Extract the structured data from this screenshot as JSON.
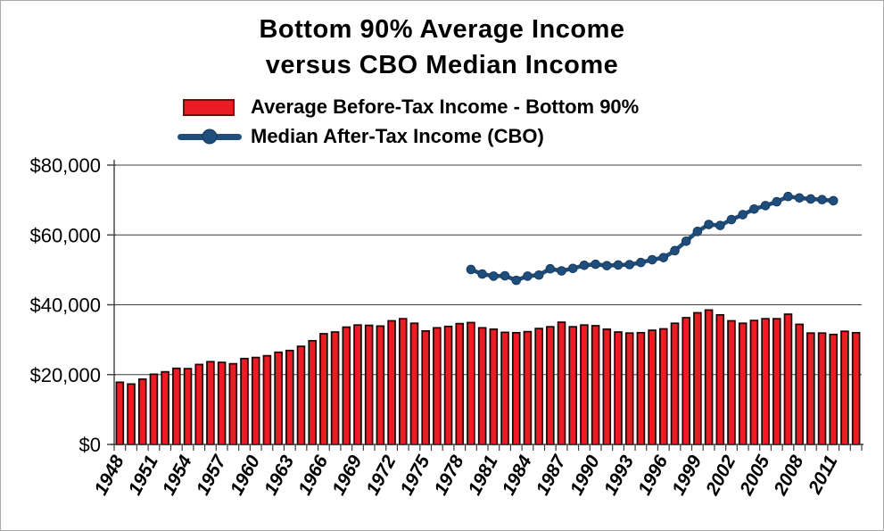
{
  "title": {
    "line1": "Bottom 90% Average Income",
    "line2": "versus CBO Median Income"
  },
  "legend": {
    "items": [
      {
        "label": "Average Before-Tax Income - Bottom 90%",
        "swatch": "bar",
        "color": "#ec1c24",
        "border_color": "#7a0a0a"
      },
      {
        "label": "Median After-Tax Income (CBO)",
        "swatch": "line-with-dot",
        "color": "#1f4e7c"
      }
    ]
  },
  "colors": {
    "bar_fill": "#ec1c24",
    "bar_border": "#1c0505",
    "line": "#1f4e7c",
    "marker_border": "#16395e",
    "axis": "#3f3f3f",
    "gridline": "#3f3f3f",
    "text": "#000000"
  },
  "chart_data": {
    "type": "bar+line combo",
    "title": "Bottom 90% Average Income versus CBO Median Income",
    "xlabel": "",
    "ylabel": "",
    "ylim": [
      0,
      80000
    ],
    "grid": true,
    "legend_position": "top-left",
    "y_ticks": [
      {
        "value": 0,
        "label": "$0"
      },
      {
        "value": 20000,
        "label": "$20,000"
      },
      {
        "value": 40000,
        "label": "$40,000"
      },
      {
        "value": 60000,
        "label": "$60,000"
      },
      {
        "value": 80000,
        "label": "$80,000"
      }
    ],
    "x_years": [
      1948,
      1949,
      1950,
      1951,
      1952,
      1953,
      1954,
      1955,
      1956,
      1957,
      1958,
      1959,
      1960,
      1961,
      1962,
      1963,
      1964,
      1965,
      1966,
      1967,
      1968,
      1969,
      1970,
      1971,
      1972,
      1973,
      1974,
      1975,
      1976,
      1977,
      1978,
      1979,
      1980,
      1981,
      1982,
      1983,
      1984,
      1985,
      1986,
      1987,
      1988,
      1989,
      1990,
      1991,
      1992,
      1993,
      1994,
      1995,
      1996,
      1997,
      1998,
      1999,
      2000,
      2001,
      2002,
      2003,
      2004,
      2005,
      2006,
      2007,
      2008,
      2009,
      2010,
      2011,
      2012,
      2013
    ],
    "x_tick_label_years": [
      1948,
      1951,
      1954,
      1957,
      1960,
      1963,
      1966,
      1969,
      1972,
      1975,
      1978,
      1981,
      1984,
      1987,
      1990,
      1993,
      1996,
      1999,
      2002,
      2005,
      2008,
      2011
    ],
    "series": [
      {
        "name": "Average Before-Tax Income - Bottom 90%",
        "type": "bar",
        "start_year": 1948,
        "values": [
          17800,
          17300,
          18700,
          20100,
          20800,
          21800,
          21700,
          22900,
          23700,
          23500,
          23100,
          24600,
          24900,
          25400,
          26400,
          26900,
          28100,
          29700,
          31700,
          32200,
          33600,
          34200,
          34100,
          33900,
          35400,
          36000,
          34700,
          32500,
          33400,
          33800,
          34600,
          34900,
          33400,
          33000,
          32100,
          32000,
          32300,
          33200,
          33700,
          35000,
          33700,
          34200,
          34000,
          33000,
          32200,
          31900,
          32000,
          32700,
          33100,
          34700,
          36300,
          37700,
          38500,
          37100,
          35400,
          34700,
          35500,
          36000,
          36000,
          37300,
          34400,
          31900,
          31900,
          31500,
          32400,
          32000
        ]
      },
      {
        "name": "Median After-Tax Income (CBO)",
        "type": "line",
        "start_year": 1979,
        "values": [
          50100,
          48800,
          48200,
          48300,
          47000,
          48200,
          48500,
          50300,
          49700,
          50400,
          51300,
          51600,
          51200,
          51400,
          51500,
          52100,
          52900,
          53500,
          55500,
          58200,
          61000,
          63000,
          62700,
          64400,
          65800,
          67400,
          68400,
          69500,
          71000,
          70600,
          70300,
          70100,
          69800
        ]
      }
    ]
  }
}
